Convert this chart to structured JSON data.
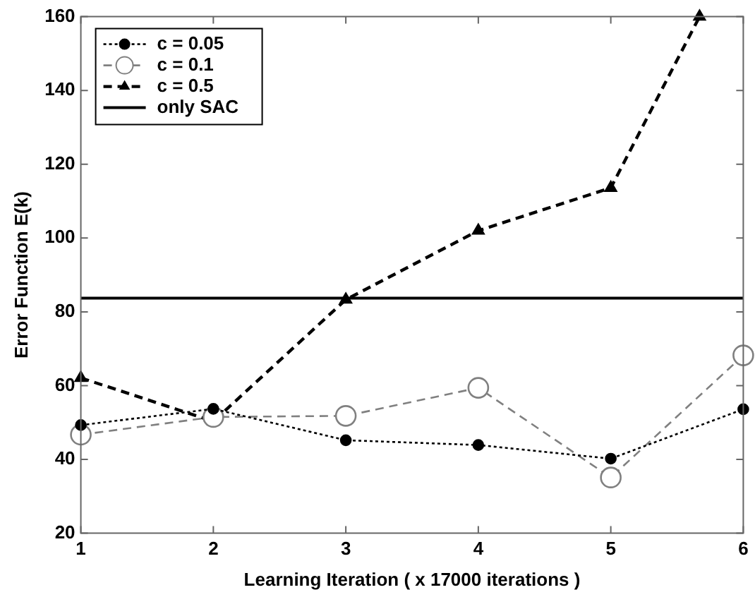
{
  "chart_data": {
    "type": "line",
    "xlabel": "Learning Iteration ( x 17000 iterations )",
    "ylabel": "Error Function E(k)",
    "x": [
      1,
      2,
      3,
      4,
      5,
      6
    ],
    "series": [
      {
        "name": "c = 0.05",
        "color": "#000000",
        "marker": "circle",
        "line_style": "dotted",
        "values": [
          49.3,
          53.7,
          45.2,
          43.9,
          40.2,
          53.6
        ]
      },
      {
        "name": "c = 0.1",
        "color": "#808080",
        "marker": "circle",
        "line_style": "dashed",
        "values": [
          46.7,
          51.5,
          51.8,
          59.4,
          35.1,
          68.2
        ]
      },
      {
        "name": "c = 0.5",
        "color": "#000000",
        "marker": "triangle",
        "line_style": "dashed",
        "x": [
          1,
          2,
          3,
          4,
          5,
          5.67
        ],
        "values": [
          62.1,
          50.3,
          83.3,
          102,
          113.6,
          160
        ]
      },
      {
        "name": "only SAC",
        "color": "#000000",
        "marker": "none",
        "line_style": "solid",
        "values": [
          83.7,
          83.7,
          83.7,
          83.7,
          83.7,
          83.7
        ]
      }
    ],
    "xlim": [
      1,
      6
    ],
    "xticks": [
      1,
      2,
      3,
      4,
      5,
      6
    ],
    "ylim": [
      20,
      160
    ],
    "yticks": [
      20,
      40,
      60,
      80,
      100,
      120,
      140,
      160
    ],
    "grid": false,
    "legend": "top left"
  }
}
